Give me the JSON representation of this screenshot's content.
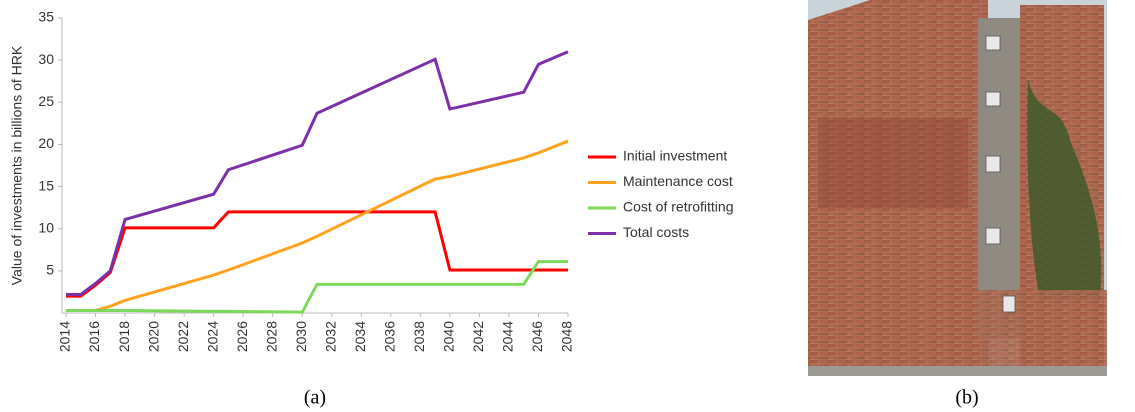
{
  "chart_data": {
    "type": "line",
    "y_label": "Value of investments in billions of HRK",
    "x": [
      2014,
      2015,
      2016,
      2017,
      2018,
      2024,
      2025,
      2030,
      2031,
      2039,
      2040,
      2045,
      2046,
      2048
    ],
    "series": [
      {
        "name": "Initial investment",
        "color": "#ff0000",
        "values": [
          2.0,
          2.0,
          3.3,
          4.8,
          10.1,
          10.1,
          12,
          12,
          12,
          12,
          5.1,
          5.1,
          5.1,
          5.1
        ]
      },
      {
        "name": "Maintenance cost",
        "color": "#ffa21f",
        "values": [
          0.3,
          0.3,
          0.3,
          0.8,
          1.5,
          4.5,
          5.1,
          8.3,
          9.1,
          15.9,
          16.2,
          18.4,
          19,
          20.4
        ]
      },
      {
        "name": "Cost of retrofitting",
        "color": "#7dd95a",
        "values": [
          0.3,
          0.3,
          0.3,
          0.3,
          0.3,
          0.2,
          0.2,
          0.1,
          3.4,
          3.4,
          3.4,
          3.4,
          6.1,
          6.1
        ]
      },
      {
        "name": "Total costs",
        "color": "#7b2fa8",
        "values": [
          2.2,
          2.2,
          3.5,
          5.0,
          11.1,
          14.1,
          17.0,
          19.9,
          23.7,
          30.1,
          24.2,
          26.2,
          29.5,
          31.0
        ]
      }
    ],
    "xlim": [
      2014,
      2048
    ],
    "xticks": [
      2014,
      2016,
      2018,
      2020,
      2022,
      2024,
      2026,
      2028,
      2030,
      2032,
      2034,
      2036,
      2038,
      2040,
      2042,
      2044,
      2046,
      2048
    ],
    "ylim": [
      0,
      35
    ],
    "yticks": [
      5,
      10,
      15,
      20,
      25,
      30,
      35
    ],
    "legend": "right"
  },
  "captions": [
    "(a)",
    "(b)"
  ]
}
